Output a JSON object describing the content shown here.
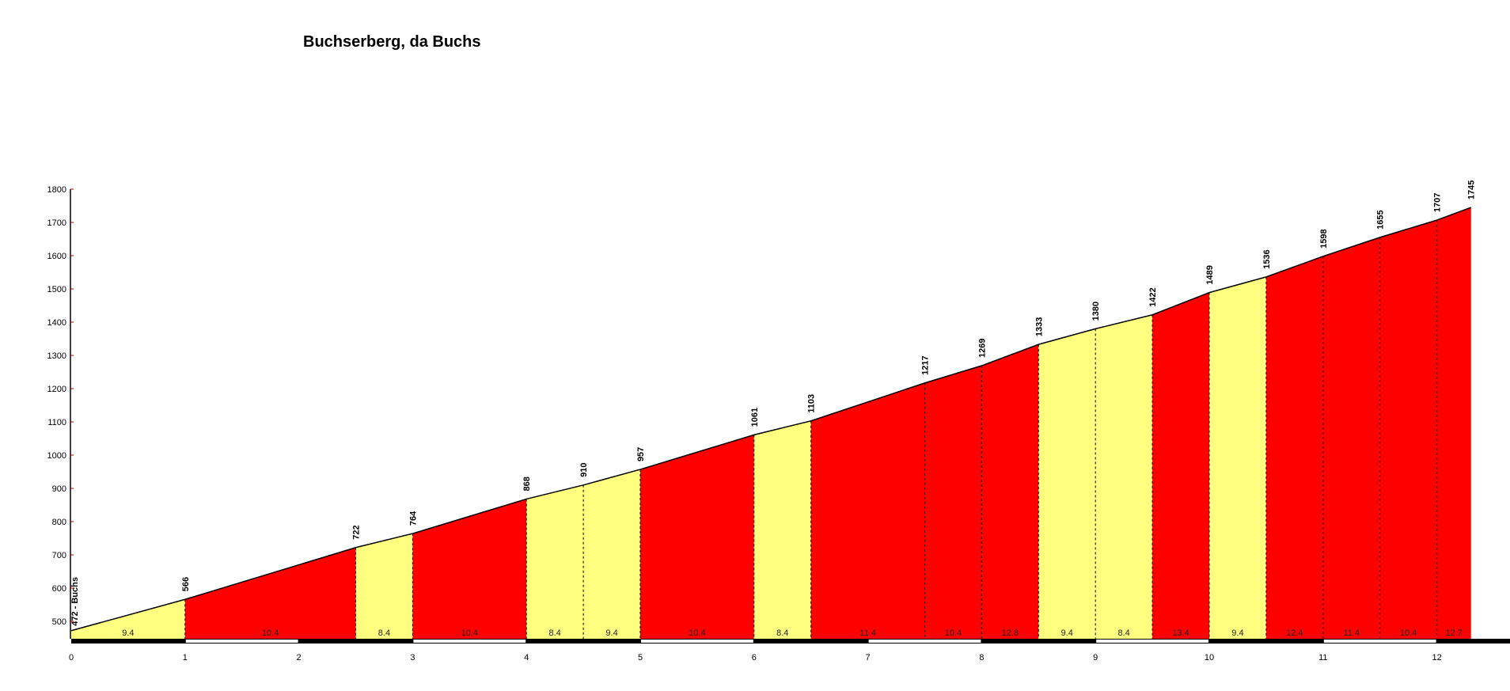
{
  "chart_data": {
    "type": "area",
    "title": "Buchserberg, da Buchs",
    "xlabel": "",
    "ylabel": "",
    "xlim": [
      0,
      12.3
    ],
    "ylim": [
      442,
      1800
    ],
    "x_ticks": [
      0,
      1,
      2,
      3,
      4,
      5,
      6,
      7,
      8,
      9,
      10,
      11,
      12
    ],
    "y_ticks": [
      500,
      600,
      700,
      800,
      900,
      1000,
      1100,
      1200,
      1300,
      1400,
      1500,
      1600,
      1700,
      1800
    ],
    "start_label": "472 - Buchs",
    "points": [
      {
        "km": 0,
        "alt": 472
      },
      {
        "km": 1,
        "alt": 566
      },
      {
        "km": 2.5,
        "alt": 722
      },
      {
        "km": 3,
        "alt": 764
      },
      {
        "km": 4,
        "alt": 868
      },
      {
        "km": 4.5,
        "alt": 910
      },
      {
        "km": 5,
        "alt": 957
      },
      {
        "km": 6,
        "alt": 1061
      },
      {
        "km": 6.5,
        "alt": 1103
      },
      {
        "km": 7.5,
        "alt": 1217
      },
      {
        "km": 8,
        "alt": 1269
      },
      {
        "km": 8.5,
        "alt": 1333
      },
      {
        "km": 9,
        "alt": 1380
      },
      {
        "km": 9.5,
        "alt": 1422
      },
      {
        "km": 10,
        "alt": 1489
      },
      {
        "km": 10.5,
        "alt": 1536
      },
      {
        "km": 11,
        "alt": 1598
      },
      {
        "km": 11.5,
        "alt": 1655
      },
      {
        "km": 12,
        "alt": 1707
      },
      {
        "km": 12.3,
        "alt": 1745
      }
    ],
    "segment_gradients": [
      "9.4",
      "10.4",
      "8.4",
      "10.4",
      "8.4",
      "9.4",
      "10.4",
      "8.4",
      "11.4",
      "10.4",
      "12.8",
      "9.4",
      "8.4",
      "13.4",
      "9.4",
      "12.4",
      "11.4",
      "10.4",
      "12.7"
    ],
    "colors": {
      "below_10": "#ffff80",
      "from_10": "#ff0000",
      "outline": "#000000"
    },
    "grid": false
  }
}
